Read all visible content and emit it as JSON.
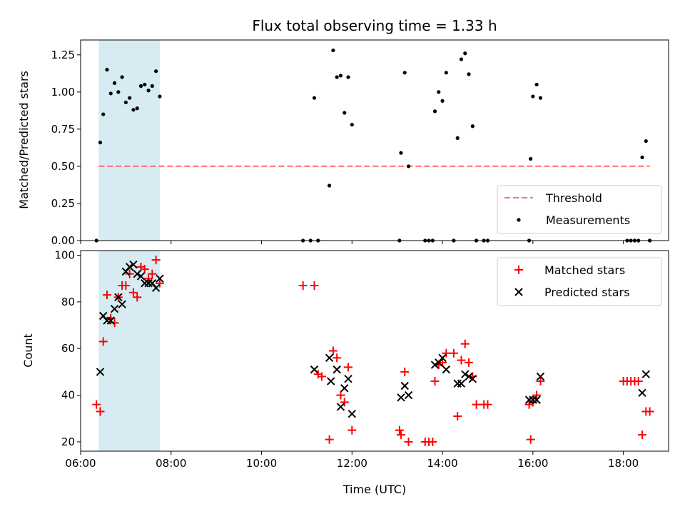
{
  "chart_data": [
    {
      "type": "scatter",
      "title": "Flux total observing time = 1.33 h",
      "xlabel": "",
      "ylabel": "Matched/Predicted stars",
      "xlim": [
        "06:00",
        "19:00"
      ],
      "ylim": [
        0,
        1.35
      ],
      "yticks": [
        "0.00",
        "0.25",
        "0.50",
        "0.75",
        "1.00",
        "1.25"
      ],
      "highlight_span": {
        "start": "06:24",
        "end": "07:45",
        "color": "#add8e6"
      },
      "legend_position": "lower right",
      "threshold": {
        "name": "Threshold",
        "value": 0.5,
        "x_start": "06:24",
        "x_end": "18:35",
        "color": "#ff7070",
        "style": "dashed"
      },
      "series": [
        {
          "name": "Measurements",
          "marker": "dot",
          "color": "#000000",
          "points": [
            [
              "06:21",
              0.0
            ],
            [
              "06:26",
              0.66
            ],
            [
              "06:30",
              0.85
            ],
            [
              "06:35",
              1.15
            ],
            [
              "06:40",
              0.99
            ],
            [
              "06:45",
              1.06
            ],
            [
              "06:50",
              1.0
            ],
            [
              "06:55",
              1.1
            ],
            [
              "07:00",
              0.93
            ],
            [
              "07:05",
              0.96
            ],
            [
              "07:10",
              0.88
            ],
            [
              "07:15",
              0.89
            ],
            [
              "07:20",
              1.04
            ],
            [
              "07:25",
              1.05
            ],
            [
              "07:30",
              1.01
            ],
            [
              "07:35",
              1.04
            ],
            [
              "07:40",
              1.14
            ],
            [
              "07:45",
              0.97
            ],
            [
              "10:55",
              0.0
            ],
            [
              "11:05",
              0.0
            ],
            [
              "11:10",
              0.96
            ],
            [
              "11:15",
              0.0
            ],
            [
              "11:30",
              0.37
            ],
            [
              "11:35",
              1.28
            ],
            [
              "11:40",
              1.1
            ],
            [
              "11:45",
              1.11
            ],
            [
              "11:50",
              0.86
            ],
            [
              "11:55",
              1.1
            ],
            [
              "12:00",
              0.78
            ],
            [
              "13:03",
              0.0
            ],
            [
              "13:05",
              0.59
            ],
            [
              "13:10",
              1.13
            ],
            [
              "13:15",
              0.5
            ],
            [
              "13:37",
              0.0
            ],
            [
              "13:42",
              0.0
            ],
            [
              "13:47",
              0.0
            ],
            [
              "13:50",
              0.87
            ],
            [
              "13:55",
              1.0
            ],
            [
              "14:00",
              0.94
            ],
            [
              "14:05",
              1.13
            ],
            [
              "14:15",
              0.0
            ],
            [
              "14:20",
              0.69
            ],
            [
              "14:25",
              1.22
            ],
            [
              "14:30",
              1.26
            ],
            [
              "14:35",
              1.12
            ],
            [
              "14:40",
              0.77
            ],
            [
              "14:45",
              0.0
            ],
            [
              "14:55",
              0.0
            ],
            [
              "15:00",
              0.0
            ],
            [
              "15:55",
              0.0
            ],
            [
              "15:57",
              0.55
            ],
            [
              "16:00",
              0.97
            ],
            [
              "16:05",
              1.05
            ],
            [
              "16:10",
              0.96
            ],
            [
              "18:05",
              0.0
            ],
            [
              "18:10",
              0.0
            ],
            [
              "18:15",
              0.0
            ],
            [
              "18:20",
              0.0
            ],
            [
              "18:25",
              0.56
            ],
            [
              "18:30",
              0.67
            ],
            [
              "18:35",
              0.0
            ]
          ]
        }
      ]
    },
    {
      "type": "scatter",
      "title": "",
      "xlabel": "Time (UTC)",
      "ylabel": "Count",
      "xlim": [
        "06:00",
        "19:00"
      ],
      "xticks": [
        "06:00",
        "08:00",
        "10:00",
        "12:00",
        "14:00",
        "16:00",
        "18:00"
      ],
      "ylim": [
        16,
        102
      ],
      "yticks": [
        "20",
        "40",
        "60",
        "80",
        "100"
      ],
      "highlight_span": {
        "start": "06:24",
        "end": "07:45",
        "color": "#add8e6"
      },
      "legend_position": "upper right",
      "series": [
        {
          "name": "Matched stars",
          "marker": "plus",
          "color": "#ff0000",
          "points": [
            [
              "06:21",
              36
            ],
            [
              "06:26",
              33
            ],
            [
              "06:30",
              63
            ],
            [
              "06:35",
              83
            ],
            [
              "06:40",
              73
            ],
            [
              "06:45",
              71
            ],
            [
              "06:50",
              82
            ],
            [
              "06:55",
              87
            ],
            [
              "07:00",
              87
            ],
            [
              "07:05",
              92
            ],
            [
              "07:10",
              84
            ],
            [
              "07:15",
              82
            ],
            [
              "07:20",
              95
            ],
            [
              "07:25",
              94
            ],
            [
              "07:30",
              90
            ],
            [
              "07:35",
              92
            ],
            [
              "07:40",
              98
            ],
            [
              "07:45",
              88
            ],
            [
              "10:55",
              87
            ],
            [
              "11:10",
              87
            ],
            [
              "11:15",
              49
            ],
            [
              "11:20",
              48
            ],
            [
              "11:30",
              21
            ],
            [
              "11:35",
              59
            ],
            [
              "11:40",
              56
            ],
            [
              "11:45",
              40
            ],
            [
              "11:50",
              37
            ],
            [
              "11:55",
              52
            ],
            [
              "12:00",
              25
            ],
            [
              "13:03",
              25
            ],
            [
              "13:05",
              23
            ],
            [
              "13:10",
              50
            ],
            [
              "13:15",
              20
            ],
            [
              "13:37",
              20
            ],
            [
              "13:42",
              20
            ],
            [
              "13:47",
              20
            ],
            [
              "13:50",
              46
            ],
            [
              "13:55",
              53
            ],
            [
              "14:00",
              54
            ],
            [
              "14:05",
              58
            ],
            [
              "14:15",
              58
            ],
            [
              "14:20",
              31
            ],
            [
              "14:25",
              55
            ],
            [
              "14:30",
              62
            ],
            [
              "14:35",
              54
            ],
            [
              "14:40",
              48
            ],
            [
              "14:45",
              36
            ],
            [
              "14:55",
              36
            ],
            [
              "15:00",
              36
            ],
            [
              "15:55",
              36
            ],
            [
              "15:57",
              21
            ],
            [
              "16:00",
              37
            ],
            [
              "16:05",
              40
            ],
            [
              "16:10",
              46
            ],
            [
              "18:00",
              46
            ],
            [
              "18:05",
              46
            ],
            [
              "18:10",
              46
            ],
            [
              "18:15",
              46
            ],
            [
              "18:20",
              46
            ],
            [
              "18:25",
              23
            ],
            [
              "18:30",
              33
            ],
            [
              "18:35",
              33
            ]
          ]
        },
        {
          "name": "Predicted stars",
          "marker": "x",
          "color": "#000000",
          "points": [
            [
              "06:26",
              50
            ],
            [
              "06:30",
              74
            ],
            [
              "06:35",
              72
            ],
            [
              "06:40",
              72
            ],
            [
              "06:45",
              77
            ],
            [
              "06:50",
              82
            ],
            [
              "06:55",
              79
            ],
            [
              "07:00",
              93
            ],
            [
              "07:05",
              95
            ],
            [
              "07:10",
              96
            ],
            [
              "07:15",
              92
            ],
            [
              "07:20",
              91
            ],
            [
              "07:25",
              88
            ],
            [
              "07:30",
              88
            ],
            [
              "07:35",
              88
            ],
            [
              "07:40",
              86
            ],
            [
              "07:45",
              90
            ],
            [
              "11:10",
              51
            ],
            [
              "11:30",
              56
            ],
            [
              "11:32",
              46
            ],
            [
              "11:40",
              51
            ],
            [
              "11:45",
              35
            ],
            [
              "11:50",
              43
            ],
            [
              "11:55",
              47
            ],
            [
              "12:00",
              32
            ],
            [
              "13:05",
              39
            ],
            [
              "13:10",
              44
            ],
            [
              "13:15",
              40
            ],
            [
              "13:50",
              53
            ],
            [
              "13:55",
              54
            ],
            [
              "14:00",
              56
            ],
            [
              "14:05",
              51
            ],
            [
              "14:20",
              45
            ],
            [
              "14:25",
              45
            ],
            [
              "14:30",
              49
            ],
            [
              "14:35",
              48
            ],
            [
              "14:40",
              47
            ],
            [
              "15:55",
              38
            ],
            [
              "16:00",
              38
            ],
            [
              "16:05",
              38
            ],
            [
              "16:10",
              48
            ],
            [
              "18:25",
              41
            ],
            [
              "18:30",
              49
            ]
          ]
        }
      ]
    }
  ]
}
